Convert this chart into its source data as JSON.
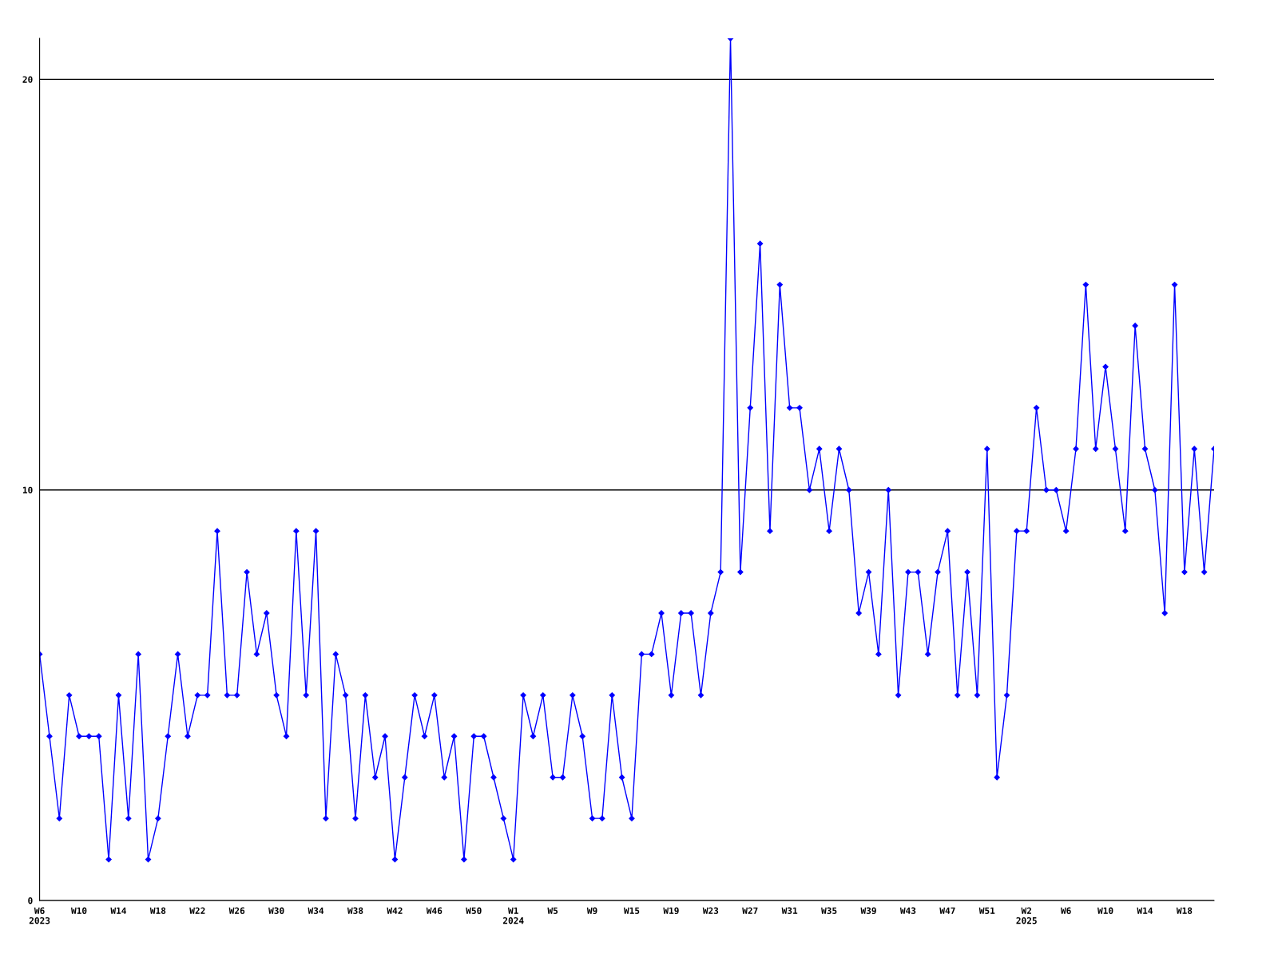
{
  "chart_data": {
    "type": "line",
    "categories": [
      "W6\n2023",
      null,
      null,
      null,
      "W10",
      null,
      null,
      null,
      "W14",
      null,
      null,
      null,
      "W18",
      null,
      null,
      null,
      "W22",
      null,
      null,
      null,
      "W26",
      null,
      null,
      null,
      "W30",
      null,
      null,
      null,
      "W34",
      null,
      null,
      null,
      "W38",
      null,
      null,
      null,
      "W42",
      null,
      null,
      null,
      "W46",
      null,
      null,
      null,
      "W50",
      null,
      null,
      null,
      "W1\n2024",
      null,
      null,
      null,
      "W5",
      null,
      null,
      null,
      "W9",
      null,
      null,
      null,
      "W15",
      null,
      null,
      null,
      "W19",
      null,
      null,
      null,
      "W23",
      null,
      null,
      null,
      "W27",
      null,
      null,
      null,
      "W31",
      null,
      null,
      null,
      "W35",
      null,
      null,
      null,
      "W39",
      null,
      null,
      null,
      "W43",
      null,
      null,
      null,
      "W47",
      null,
      null,
      null,
      "W51",
      null,
      null,
      null,
      "W2\n2025",
      null,
      null,
      null,
      "W6",
      null,
      null,
      null,
      "W10",
      null,
      null,
      null,
      "W14",
      null,
      null,
      null,
      "W18",
      null,
      null,
      null
    ],
    "series": [
      {
        "color": "#0000ff",
        "values": [
          6,
          4,
          2,
          5,
          4,
          4,
          4,
          1,
          5,
          2,
          6,
          1,
          2,
          4,
          6,
          4,
          5,
          5,
          9,
          5,
          5,
          8,
          6,
          7,
          5,
          4,
          9,
          5,
          9,
          2,
          6,
          5,
          2,
          5,
          3,
          4,
          1,
          3,
          5,
          4,
          5,
          3,
          4,
          1,
          4,
          4,
          3,
          2,
          1,
          5,
          4,
          5,
          3,
          3,
          5,
          4,
          2,
          2,
          5,
          3,
          2,
          6,
          6,
          7,
          5,
          7,
          7,
          5,
          7,
          8,
          21,
          8,
          12,
          16,
          9,
          15,
          12,
          12,
          10,
          11,
          9,
          11,
          10,
          7,
          8,
          6,
          10,
          5,
          8,
          8,
          6,
          8,
          9,
          5,
          8,
          5,
          11,
          3,
          5,
          9,
          9,
          12,
          10,
          10,
          9,
          11,
          15,
          11,
          13,
          11,
          9,
          14,
          11,
          10,
          7,
          15,
          8,
          11,
          8,
          11
        ]
      }
    ],
    "ylim": [
      0,
      21
    ],
    "yticks": [
      0,
      10,
      20
    ],
    "grid": "y",
    "marker": "diamond",
    "line_style": "solid",
    "legend": false
  }
}
